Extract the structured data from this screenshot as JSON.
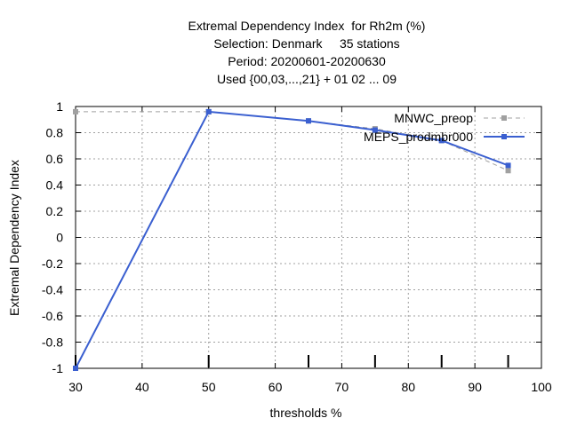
{
  "chart_data": {
    "type": "line",
    "title_lines": [
      "Extremal Dependency Index  for Rh2m (%)",
      "Selection: Denmark     35 stations",
      "Period: 20200601-20200630",
      "Used {00,03,...,21} + 01 02 ... 09"
    ],
    "xlabel": "thresholds %",
    "ylabel": "Extremal Dependency Index",
    "xlim": [
      30,
      100
    ],
    "ylim": [
      -1,
      1
    ],
    "xticks": [
      30,
      40,
      50,
      60,
      70,
      80,
      90,
      100
    ],
    "yticks": [
      -1,
      -0.8,
      -0.6,
      -0.4,
      -0.2,
      0,
      0.2,
      0.4,
      0.6,
      0.8,
      1
    ],
    "ytick_labels": [
      "-1",
      "-0.8",
      "-0.6",
      "-0.4",
      "-0.2",
      "0",
      "0.2",
      "0.4",
      "0.6",
      "0.8",
      "1"
    ],
    "threshold_marks": [
      30,
      50,
      65,
      75,
      85,
      95
    ],
    "grid": true,
    "legend_position": "top-right",
    "series": [
      {
        "name": "MNWC_preop",
        "color": "#a0a0a0",
        "dashed": true,
        "x": [
          30,
          50,
          65,
          75,
          85,
          95
        ],
        "y": [
          0.96,
          0.96,
          0.89,
          0.83,
          0.74,
          0.51
        ]
      },
      {
        "name": "MEPS_prodmbr000",
        "color": "#3a5fd0",
        "dashed": false,
        "x": [
          30,
          50,
          65,
          75,
          85,
          95
        ],
        "y": [
          -1.0,
          0.96,
          0.89,
          0.82,
          0.74,
          0.55
        ]
      }
    ]
  }
}
